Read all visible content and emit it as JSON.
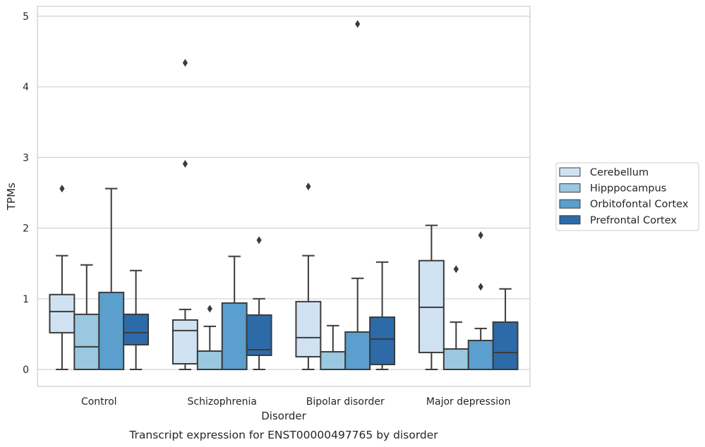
{
  "chart_data": {
    "type": "box",
    "title": "Transcript expression for ENST00000497765 by disorder",
    "xlabel": "Disorder",
    "ylabel": "TPMs",
    "ylim": [
      -0.24,
      5.14
    ],
    "yticks": [
      "0",
      "1",
      "2",
      "3",
      "4",
      "5"
    ],
    "grid": true,
    "legend_position": "right",
    "categories": [
      "Control",
      "Schizophrenia",
      "Bipolar disorder",
      "Major depression"
    ],
    "series": [
      {
        "name": "Cerebellum",
        "color": "#d0e2f2",
        "boxes": [
          {
            "whislo": 0.0,
            "q1": 0.52,
            "med": 0.82,
            "q3": 1.06,
            "whishi": 1.61,
            "fliers": [
              2.56
            ]
          },
          {
            "whislo": 0.0,
            "q1": 0.08,
            "med": 0.55,
            "q3": 0.7,
            "whishi": 0.85,
            "fliers": [
              2.91,
              4.34
            ]
          },
          {
            "whislo": 0.0,
            "q1": 0.18,
            "med": 0.45,
            "q3": 0.96,
            "whishi": 1.61,
            "fliers": [
              2.59
            ]
          },
          {
            "whislo": 0.0,
            "q1": 0.24,
            "med": 0.88,
            "q3": 1.54,
            "whishi": 2.04,
            "fliers": []
          }
        ]
      },
      {
        "name": "Hipppocampus",
        "color": "#9ac8e0",
        "boxes": [
          {
            "whislo": 0.0,
            "q1": 0.0,
            "med": 0.32,
            "q3": 0.78,
            "whishi": 1.48,
            "fliers": []
          },
          {
            "whislo": 0.0,
            "q1": 0.0,
            "med": 0.0,
            "q3": 0.26,
            "whishi": 0.61,
            "fliers": [
              0.86
            ]
          },
          {
            "whislo": 0.0,
            "q1": 0.0,
            "med": 0.0,
            "q3": 0.25,
            "whishi": 0.62,
            "fliers": []
          },
          {
            "whislo": 0.0,
            "q1": 0.0,
            "med": 0.0,
            "q3": 0.29,
            "whishi": 0.67,
            "fliers": [
              1.42
            ]
          }
        ]
      },
      {
        "name": "Orbitofontal Cortex",
        "color": "#5a9fcd",
        "boxes": [
          {
            "whislo": 0.0,
            "q1": 0.0,
            "med": 0.0,
            "q3": 1.09,
            "whishi": 2.56,
            "fliers": []
          },
          {
            "whislo": 0.0,
            "q1": 0.0,
            "med": 0.0,
            "q3": 0.94,
            "whishi": 1.6,
            "fliers": []
          },
          {
            "whislo": 0.0,
            "q1": 0.0,
            "med": 0.0,
            "q3": 0.53,
            "whishi": 1.29,
            "fliers": [
              4.89
            ]
          },
          {
            "whislo": 0.0,
            "q1": 0.0,
            "med": 0.0,
            "q3": 0.41,
            "whishi": 0.58,
            "fliers": [
              1.17,
              1.9
            ]
          }
        ]
      },
      {
        "name": "Prefrontal Cortex",
        "color": "#2c6aa8",
        "boxes": [
          {
            "whislo": 0.0,
            "q1": 0.35,
            "med": 0.52,
            "q3": 0.78,
            "whishi": 1.4,
            "fliers": []
          },
          {
            "whislo": 0.0,
            "q1": 0.2,
            "med": 0.28,
            "q3": 0.77,
            "whishi": 1.0,
            "fliers": [
              1.83
            ]
          },
          {
            "whislo": 0.0,
            "q1": 0.07,
            "med": 0.43,
            "q3": 0.74,
            "whishi": 1.52,
            "fliers": []
          },
          {
            "whislo": 0.0,
            "q1": 0.0,
            "med": 0.24,
            "q3": 0.67,
            "whishi": 1.14,
            "fliers": []
          }
        ]
      }
    ]
  }
}
